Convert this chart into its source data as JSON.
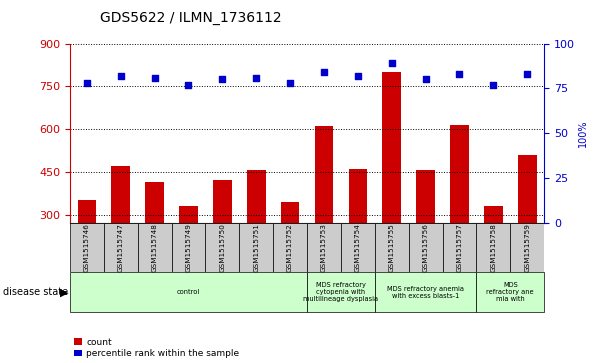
{
  "title": "GDS5622 / ILMN_1736112",
  "samples": [
    "GSM1515746",
    "GSM1515747",
    "GSM1515748",
    "GSM1515749",
    "GSM1515750",
    "GSM1515751",
    "GSM1515752",
    "GSM1515753",
    "GSM1515754",
    "GSM1515755",
    "GSM1515756",
    "GSM1515757",
    "GSM1515758",
    "GSM1515759"
  ],
  "counts": [
    350,
    470,
    415,
    330,
    420,
    455,
    345,
    610,
    460,
    800,
    455,
    615,
    330,
    510
  ],
  "percentile_ranks": [
    78,
    82,
    81,
    77,
    80,
    81,
    78,
    84,
    82,
    89,
    80,
    83,
    77,
    83
  ],
  "ylim_left": [
    270,
    900
  ],
  "ylim_right": [
    0,
    100
  ],
  "yticks_left": [
    300,
    450,
    600,
    750,
    900
  ],
  "yticks_right": [
    0,
    25,
    50,
    75,
    100
  ],
  "disease_groups": [
    {
      "label": "control",
      "start": 0,
      "end": 7
    },
    {
      "label": "MDS refractory\ncytopenia with\nmultilineage dysplasia",
      "start": 7,
      "end": 9
    },
    {
      "label": "MDS refractory anemia\nwith excess blasts-1",
      "start": 9,
      "end": 12
    },
    {
      "label": "MDS\nrefractory ane\nmia with",
      "start": 12,
      "end": 14
    }
  ],
  "bar_color": "#cc0000",
  "dot_color": "#0000cc",
  "bg_color": "#ffffff",
  "sample_bg_color": "#cccccc",
  "disease_bg_color": "#ccffcc",
  "left_axis_color": "#cc0000",
  "right_axis_color": "#0000cc",
  "disease_label": "disease state",
  "legend_count": "count",
  "legend_percentile": "percentile rank within the sample",
  "right_ylabel": "100%"
}
